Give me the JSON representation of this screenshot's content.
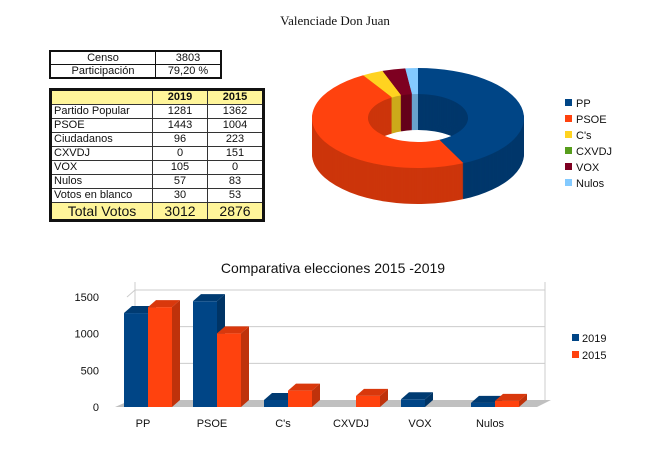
{
  "title": "Valenciade Don Juan",
  "summary": {
    "rows": [
      {
        "label": "Censo",
        "value": "3803"
      },
      {
        "label": "Participación",
        "value": "79,20 %"
      }
    ]
  },
  "results_table": {
    "headers": [
      "",
      "2019",
      "2015"
    ],
    "rows": [
      [
        "Partido Popular",
        "1281",
        "1362"
      ],
      [
        "PSOE",
        "1443",
        "1004"
      ],
      [
        "Ciudadanos",
        "96",
        "223"
      ],
      [
        "CXVDJ",
        "0",
        "151"
      ],
      [
        "VOX",
        "105",
        "0"
      ],
      [
        "Nulos",
        "57",
        "83"
      ],
      [
        "Votos en blanco",
        "30",
        "53"
      ]
    ],
    "total": [
      "Total Votos",
      "3012",
      "2876"
    ]
  },
  "chart_data": [
    {
      "type": "pie",
      "variant": "3d-donut",
      "title": "",
      "legend_position": "right",
      "categories": [
        "PP",
        "PSOE",
        "C's",
        "CXVDJ",
        "VOX",
        "Nulos"
      ],
      "values": [
        1281,
        1443,
        96,
        0,
        105,
        57
      ],
      "colors": [
        "#004586",
        "#ff420e",
        "#ffd320",
        "#579d1c",
        "#7e0021",
        "#83caff"
      ]
    },
    {
      "type": "bar",
      "variant": "3d-grouped",
      "title": "Comparativa elecciones 2015 -2019",
      "xlabel": "",
      "ylabel": "",
      "ylim": [
        0,
        1500
      ],
      "yticks": [
        0,
        500,
        1000,
        1500
      ],
      "grid": true,
      "legend_position": "right",
      "categories": [
        "PP",
        "PSOE",
        "C's",
        "CXVDJ",
        "VOX",
        "Nulos"
      ],
      "series": [
        {
          "name": "2019",
          "values": [
            1281,
            1443,
            96,
            0,
            105,
            57
          ],
          "color": "#004586"
        },
        {
          "name": "2015",
          "values": [
            1362,
            1004,
            223,
            151,
            0,
            83
          ],
          "color": "#ff420e"
        }
      ]
    }
  ]
}
